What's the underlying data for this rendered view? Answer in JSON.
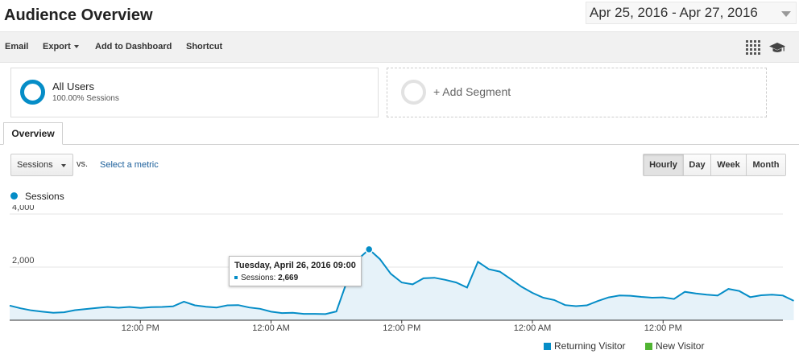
{
  "header": {
    "title": "Audience Overview",
    "date_range": "Apr 25, 2016 - Apr 27, 2016"
  },
  "toolbar": {
    "email": "Email",
    "export": "Export",
    "add_to_dashboard": "Add to Dashboard",
    "shortcut": "Shortcut"
  },
  "segments": {
    "all_users": {
      "name": "All Users",
      "subtitle": "100.00% Sessions"
    },
    "add_segment": "+ Add Segment"
  },
  "tabs": {
    "overview": "Overview"
  },
  "controls": {
    "metric_selected": "Sessions",
    "vs": "vs.",
    "select_metric": "Select a metric",
    "periods": [
      "Hourly",
      "Day",
      "Week",
      "Month"
    ],
    "active_period": "Hourly"
  },
  "colors": {
    "accent": "#058dc7",
    "returning_visitor": "#058dc7",
    "new_visitor": "#50b432",
    "area_fill": "#e6f2f9"
  },
  "chart_data": {
    "type": "area",
    "series_label": "Sessions",
    "y_ticks": [
      "4,000",
      "2,000"
    ],
    "y_tick_values": [
      4000,
      2000
    ],
    "ylim": [
      0,
      4000
    ],
    "x_tick_labels": [
      "12:00 PM",
      "12:00 AM",
      "12:00 PM",
      "12:00 AM",
      "12:00 PM"
    ],
    "x_tick_hours": [
      12,
      24,
      36,
      48,
      60
    ],
    "x_range_hours": [
      0,
      71
    ],
    "series": [
      {
        "name": "Sessions",
        "values": [
          550,
          450,
          370,
          320,
          280,
          300,
          380,
          420,
          460,
          500,
          470,
          500,
          460,
          490,
          500,
          520,
          700,
          560,
          510,
          480,
          560,
          570,
          480,
          430,
          320,
          270,
          280,
          240,
          240,
          230,
          330,
          1500,
          2300,
          2669,
          2300,
          1750,
          1420,
          1350,
          1580,
          1600,
          1520,
          1420,
          1230,
          2200,
          1920,
          1830,
          1550,
          1260,
          1030,
          850,
          760,
          570,
          530,
          560,
          720,
          860,
          930,
          920,
          880,
          850,
          860,
          800,
          1070,
          1010,
          960,
          930,
          1180,
          1100,
          870,
          940,
          960,
          930,
          730
        ]
      }
    ],
    "tooltip": {
      "title": "Tuesday, April 26, 2016 09:00",
      "series": "Sessions",
      "value": "2,669",
      "x_hour": 33
    },
    "legend": [
      "Returning Visitor",
      "New Visitor"
    ],
    "grid": true
  }
}
